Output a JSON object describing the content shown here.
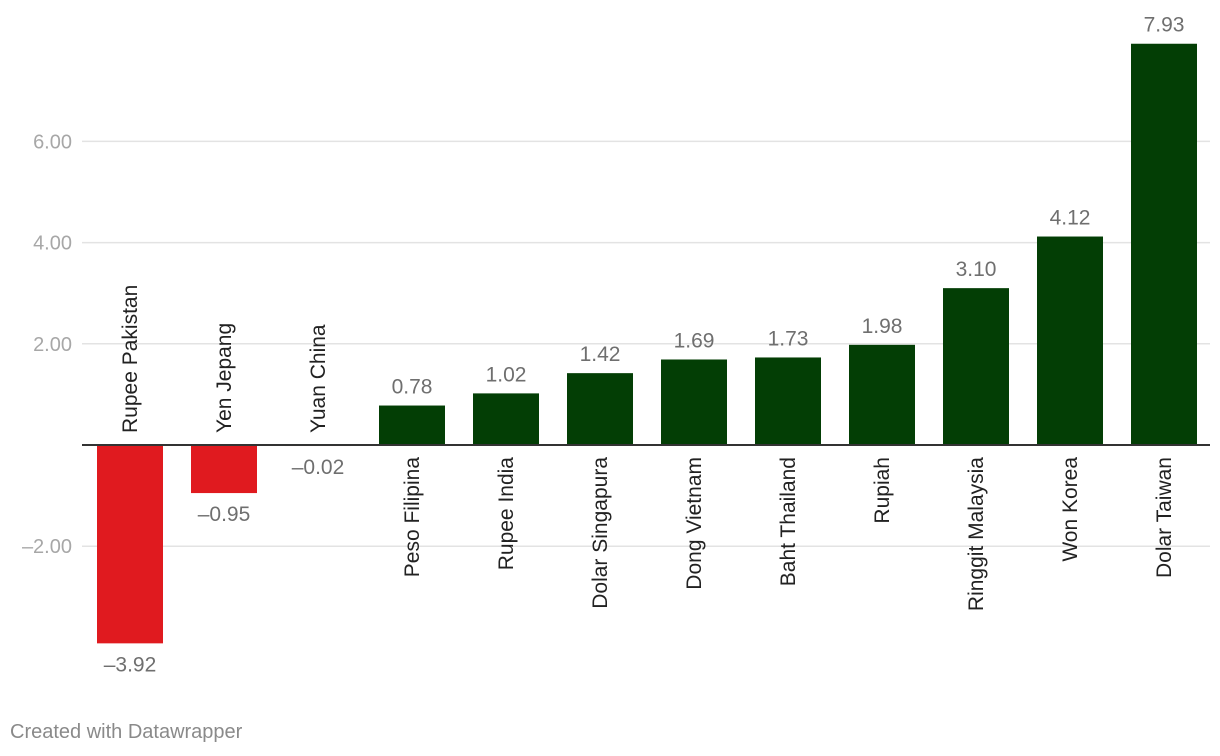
{
  "chart_data": {
    "type": "bar",
    "categories": [
      "Rupee Pakistan",
      "Yen Jepang",
      "Yuan China",
      "Peso Filipina",
      "Rupee India",
      "Dolar Singapura",
      "Dong Vietnam",
      "Baht Thailand",
      "Rupiah",
      "Ringgit Malaysia",
      "Won Korea",
      "Dolar Taiwan"
    ],
    "values": [
      -3.92,
      -0.95,
      -0.02,
      0.78,
      1.02,
      1.42,
      1.69,
      1.73,
      1.98,
      3.1,
      4.12,
      7.93
    ],
    "value_labels": [
      "–3.92",
      "–0.95",
      "–0.02",
      "0.78",
      "1.02",
      "1.42",
      "1.69",
      "1.73",
      "1.98",
      "3.10",
      "4.12",
      "7.93"
    ],
    "yticks": [
      -2,
      2,
      4,
      6
    ],
    "ytick_labels": [
      "–2.00",
      "2.00",
      "4.00",
      "6.00"
    ],
    "ylim": [
      -4.2,
      8.3
    ],
    "grid": true,
    "colors": {
      "positive": "#033e05",
      "negative": "#e01a1f",
      "gridline": "#e3e3e3",
      "axis": "#333333",
      "tick_text": "#a7a7a7",
      "value_text": "#6f6f6f",
      "category_text": "#222222"
    }
  },
  "footer": {
    "credit": "Created with Datawrapper"
  }
}
